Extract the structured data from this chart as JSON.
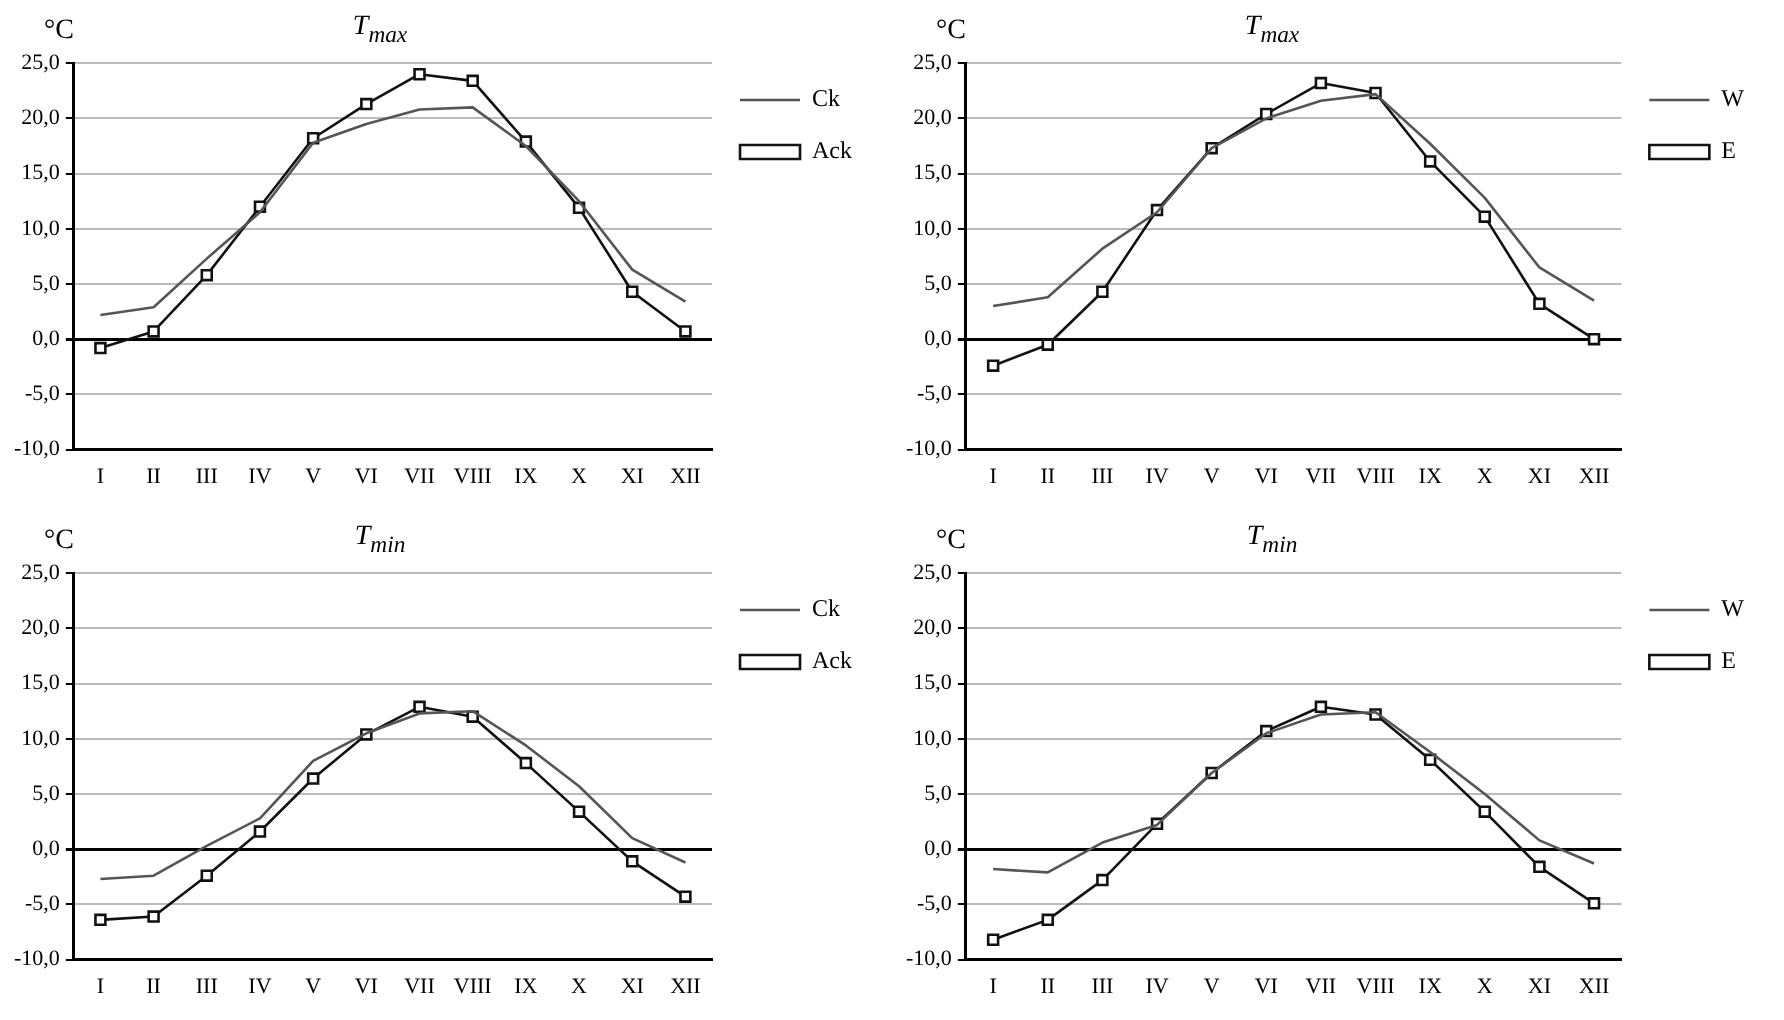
{
  "chart_data": [
    {
      "type": "line",
      "title": "T$_{max}$",
      "ylabel": "°C",
      "categories": [
        "I",
        "II",
        "III",
        "IV",
        "V",
        "VI",
        "VII",
        "VIII",
        "IX",
        "X",
        "XI",
        "XII"
      ],
      "ylim": [
        -10,
        25
      ],
      "yticks": [
        {
          "value": -10,
          "label": "-10,0"
        },
        {
          "value": -5,
          "label": "-5,0"
        },
        {
          "value": 0,
          "label": "0,0"
        },
        {
          "value": 5,
          "label": "5,0"
        },
        {
          "value": 10,
          "label": "10,0"
        },
        {
          "value": 15,
          "label": "15,0"
        },
        {
          "value": 20,
          "label": "20,0"
        },
        {
          "value": 25,
          "label": "25,0"
        }
      ],
      "grid": "y",
      "legend": "top right",
      "series": [
        {
          "name": "Ck",
          "color": "#555555",
          "marker": "none",
          "values": [
            2.2,
            2.9,
            7.3,
            11.5,
            17.8,
            19.5,
            20.8,
            21.0,
            17.5,
            12.5,
            6.3,
            3.4
          ]
        },
        {
          "name": "Ack",
          "color": "#111111",
          "marker": "square",
          "values": [
            -0.8,
            0.7,
            5.8,
            12.0,
            18.2,
            21.3,
            24.0,
            23.4,
            17.9,
            11.9,
            4.3,
            0.7
          ]
        }
      ]
    },
    {
      "type": "line",
      "title": "T$_{max}$",
      "ylabel": "°C",
      "categories": [
        "I",
        "II",
        "III",
        "IV",
        "V",
        "VI",
        "VII",
        "VIII",
        "IX",
        "X",
        "XI",
        "XII"
      ],
      "ylim": [
        -10,
        25
      ],
      "yticks": [
        {
          "value": -10,
          "label": "-10,0"
        },
        {
          "value": -5,
          "label": "-5,0"
        },
        {
          "value": 0,
          "label": "0,0"
        },
        {
          "value": 5,
          "label": "5,0"
        },
        {
          "value": 10,
          "label": "10,0"
        },
        {
          "value": 15,
          "label": "15,0"
        },
        {
          "value": 20,
          "label": "20,0"
        },
        {
          "value": 25,
          "label": "25,0"
        }
      ],
      "grid": "y",
      "legend": "top right",
      "series": [
        {
          "name": "W",
          "color": "#555555",
          "marker": "none",
          "values": [
            3.0,
            3.8,
            8.2,
            11.5,
            17.3,
            20.0,
            21.6,
            22.2,
            17.7,
            12.8,
            6.5,
            3.5
          ]
        },
        {
          "name": "E",
          "color": "#111111",
          "marker": "square",
          "values": [
            -2.4,
            -0.5,
            4.3,
            11.7,
            17.3,
            20.4,
            23.2,
            22.3,
            16.1,
            11.1,
            3.2,
            0.0
          ]
        }
      ]
    },
    {
      "type": "line",
      "title": "T$_{min}$",
      "ylabel": "°C",
      "categories": [
        "I",
        "II",
        "III",
        "IV",
        "V",
        "VI",
        "VII",
        "VIII",
        "IX",
        "X",
        "XI",
        "XII"
      ],
      "ylim": [
        -10,
        25
      ],
      "yticks": [
        {
          "value": -10,
          "label": "-10,0"
        },
        {
          "value": -5,
          "label": "-5,0"
        },
        {
          "value": 0,
          "label": "0,0"
        },
        {
          "value": 5,
          "label": "5,0"
        },
        {
          "value": 10,
          "label": "10,0"
        },
        {
          "value": 15,
          "label": "15,0"
        },
        {
          "value": 20,
          "label": "20,0"
        },
        {
          "value": 25,
          "label": "25,0"
        }
      ],
      "grid": "y",
      "legend": "top right",
      "series": [
        {
          "name": "Ck",
          "color": "#555555",
          "marker": "none",
          "values": [
            -2.7,
            -2.4,
            0.3,
            2.8,
            8.0,
            10.5,
            12.3,
            12.5,
            9.4,
            5.7,
            1.0,
            -1.2
          ]
        },
        {
          "name": "Ack",
          "color": "#111111",
          "marker": "square",
          "values": [
            -6.4,
            -6.1,
            -2.4,
            1.6,
            6.4,
            10.4,
            12.9,
            12.0,
            7.8,
            3.4,
            -1.1,
            -4.3
          ]
        }
      ]
    },
    {
      "type": "line",
      "title": "T$_{min}$",
      "ylabel": "°C",
      "categories": [
        "I",
        "II",
        "III",
        "IV",
        "V",
        "VI",
        "VII",
        "VIII",
        "IX",
        "X",
        "XI",
        "XII"
      ],
      "ylim": [
        -10,
        25
      ],
      "yticks": [
        {
          "value": -10,
          "label": "-10,0"
        },
        {
          "value": -5,
          "label": "-5,0"
        },
        {
          "value": 0,
          "label": "0,0"
        },
        {
          "value": 5,
          "label": "5,0"
        },
        {
          "value": 10,
          "label": "10,0"
        },
        {
          "value": 15,
          "label": "15,0"
        },
        {
          "value": 20,
          "label": "20,0"
        },
        {
          "value": 25,
          "label": "25,0"
        }
      ],
      "grid": "y",
      "legend": "top right",
      "series": [
        {
          "name": "W",
          "color": "#555555",
          "marker": "none",
          "values": [
            -1.8,
            -2.1,
            0.6,
            2.2,
            6.9,
            10.5,
            12.2,
            12.4,
            8.8,
            5.0,
            0.8,
            -1.3
          ]
        },
        {
          "name": "E",
          "color": "#111111",
          "marker": "square",
          "values": [
            -8.2,
            -6.4,
            -2.8,
            2.3,
            6.9,
            10.7,
            12.9,
            12.2,
            8.1,
            3.4,
            -1.6,
            -4.9
          ]
        }
      ]
    }
  ]
}
